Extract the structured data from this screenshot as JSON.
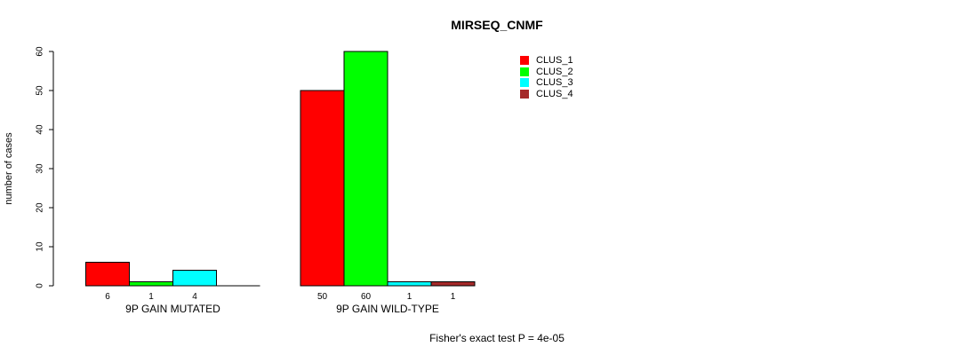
{
  "figure": {
    "title": "MIRSEQ_CNMF",
    "footer": "Fisher's exact test P = 4e-05"
  },
  "y_axis": {
    "label": "number of cases"
  },
  "chart_data": {
    "type": "bar",
    "title": "MIRSEQ_CNMF",
    "ylabel": "number of cases",
    "ylim": [
      0,
      60
    ],
    "yticks": [
      0,
      10,
      20,
      30,
      40,
      50,
      60
    ],
    "categories": [
      "9P GAIN MUTATED",
      "9P GAIN WILD-TYPE"
    ],
    "series": [
      {
        "name": "CLUS_1",
        "color": "#ff0000",
        "values": [
          6,
          50
        ]
      },
      {
        "name": "CLUS_2",
        "color": "#00ff00",
        "values": [
          1,
          60
        ]
      },
      {
        "name": "CLUS_3",
        "color": "#00ffff",
        "values": [
          4,
          1
        ]
      },
      {
        "name": "CLUS_4",
        "color": "#a52a2a",
        "values": [
          0,
          1
        ]
      }
    ],
    "bar_value_labels": [
      [
        "6",
        "1",
        "4",
        ""
      ],
      [
        "50",
        "60",
        "1",
        "1"
      ]
    ],
    "grid": false,
    "legend_position": "top-right",
    "annotation": "Fisher's exact test P = 4e-05"
  },
  "legend": {
    "items": [
      {
        "label": "CLUS_1",
        "color": "#ff0000"
      },
      {
        "label": "CLUS_2",
        "color": "#00ff00"
      },
      {
        "label": "CLUS_3",
        "color": "#00ffff"
      },
      {
        "label": "CLUS_4",
        "color": "#a52a2a"
      }
    ]
  }
}
